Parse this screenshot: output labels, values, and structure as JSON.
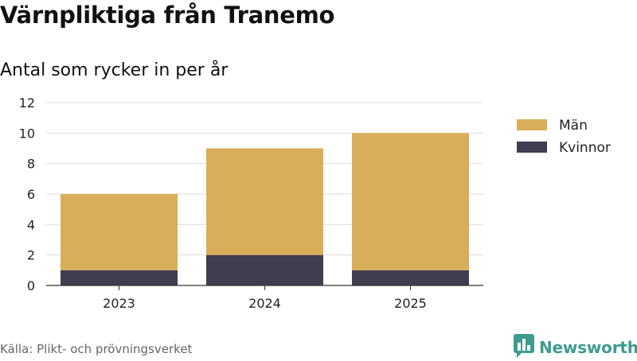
{
  "header": {
    "title": "Värnpliktiga från Tranemo",
    "subtitle": "Antal som rycker in per år"
  },
  "footer": {
    "source": "Källa: Plikt- och prövningsverket",
    "brand": "Newsworthy"
  },
  "chart_data": {
    "type": "bar",
    "stacked": true,
    "categories": [
      "2023",
      "2024",
      "2025"
    ],
    "series": [
      {
        "name": "Kvinnor",
        "values": [
          1,
          2,
          1
        ],
        "color": "#403e4e"
      },
      {
        "name": "Män",
        "values": [
          5,
          7,
          9
        ],
        "color": "#d9ae5a"
      }
    ],
    "legend_order": [
      "Män",
      "Kvinnor"
    ],
    "ylim": [
      0,
      12
    ],
    "yticks": [
      0,
      2,
      4,
      6,
      8,
      10,
      12
    ],
    "grid": true,
    "legend_position": "right"
  },
  "icons": {
    "brand": "bar-chart-logo-icon"
  }
}
